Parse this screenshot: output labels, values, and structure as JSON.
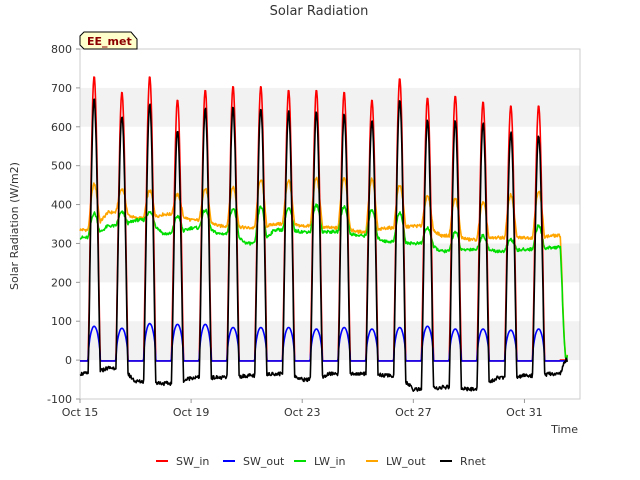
{
  "chart_data": {
    "type": "line",
    "title": "Solar Radiation",
    "xlabel": "Time",
    "ylabel": "Solar Radiation (W/m2)",
    "badge": "EE_met",
    "ylim": [
      -100,
      800
    ],
    "yticks": [
      -100,
      0,
      100,
      200,
      300,
      400,
      500,
      600,
      700,
      800
    ],
    "xlim": [
      "2021-10-15",
      "2021-11-02"
    ],
    "xticks": [
      {
        "date": "2021-10-15",
        "label": "Oct 15"
      },
      {
        "date": "2021-10-19",
        "label": "Oct 19"
      },
      {
        "date": "2021-10-23",
        "label": "Oct 23"
      },
      {
        "date": "2021-10-27",
        "label": "Oct 27"
      },
      {
        "date": "2021-10-31",
        "label": "Oct 31"
      }
    ],
    "grid": "horizontal bands",
    "legend_position": "bottom",
    "days": [
      "2021-10-15",
      "2021-10-16",
      "2021-10-17",
      "2021-10-18",
      "2021-10-19",
      "2021-10-20",
      "2021-10-21",
      "2021-10-22",
      "2021-10-23",
      "2021-10-24",
      "2021-10-25",
      "2021-10-26",
      "2021-10-27",
      "2021-10-28",
      "2021-10-29",
      "2021-10-30",
      "2021-10-31",
      "2021-11-01"
    ],
    "series": [
      {
        "name": "SW_in",
        "color": "#ff0000",
        "daily_peak": [
          730,
          690,
          730,
          670,
          695,
          705,
          705,
          695,
          695,
          690,
          670,
          725,
          675,
          680,
          665,
          655,
          655,
          null
        ]
      },
      {
        "name": "SW_out",
        "color": "#0000ff",
        "daily_peak": [
          95,
          90,
          102,
          100,
          100,
          92,
          92,
          92,
          88,
          92,
          88,
          92,
          95,
          88,
          88,
          85,
          88,
          null
        ]
      },
      {
        "name": "LW_in",
        "color": "#00dd00",
        "daily_peak": [
          378,
          380,
          380,
          370,
          385,
          390,
          395,
          390,
          398,
          395,
          385,
          380,
          340,
          330,
          320,
          310,
          345,
          null
        ],
        "night_level": [
          315,
          345,
          360,
          325,
          340,
          325,
          300,
          335,
          330,
          330,
          320,
          305,
          300,
          280,
          285,
          280,
          285,
          290
        ]
      },
      {
        "name": "LW_out",
        "color": "#ffa500",
        "daily_peak": [
          452,
          440,
          435,
          425,
          440,
          445,
          465,
          462,
          468,
          470,
          465,
          450,
          420,
          415,
          405,
          425,
          435,
          null
        ],
        "night_level": [
          335,
          380,
          365,
          375,
          360,
          345,
          340,
          350,
          345,
          340,
          330,
          340,
          345,
          320,
          310,
          315,
          315,
          320
        ]
      },
      {
        "name": "Rnet",
        "color": "#000000",
        "daily_peak": [
          670,
          630,
          660,
          590,
          645,
          650,
          650,
          640,
          635,
          630,
          615,
          670,
          615,
          615,
          610,
          585,
          575,
          null
        ],
        "night_level": [
          -35,
          -20,
          -55,
          -60,
          -45,
          -45,
          -40,
          -35,
          -50,
          -35,
          -35,
          -40,
          -75,
          -70,
          -75,
          -45,
          -40,
          -35
        ]
      }
    ]
  }
}
